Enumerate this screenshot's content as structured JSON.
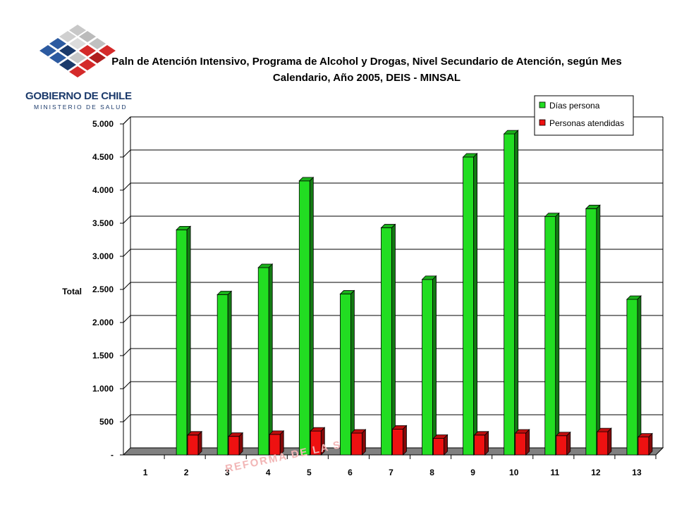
{
  "logo": {
    "line1": "GOBIERNO DE CHILE",
    "line2": "MINISTERIO DE SALUD"
  },
  "watermark": "REFORMA DE LA S",
  "chart_data": {
    "type": "bar",
    "title_line1": "Paln de Atención Intensivo, Programa de Alcohol y Drogas, Nivel Secundario de Atención, según Mes",
    "title_line2": "Calendario, Año 2005, DEIS - MINSAL",
    "ylabel": "Total",
    "xlabel": "",
    "ylim": [
      0,
      5000
    ],
    "yticks": [
      0,
      500,
      1000,
      1500,
      2000,
      2500,
      3000,
      3500,
      4000,
      4500,
      5000
    ],
    "ytick_labels": [
      "-",
      "500",
      "1.000",
      "1.500",
      "2.000",
      "2.500",
      "3.000",
      "3.500",
      "4.000",
      "4.500",
      "5.000"
    ],
    "categories": [
      "1",
      "2",
      "3",
      "4",
      "5",
      "6",
      "7",
      "8",
      "9",
      "10",
      "11",
      "12",
      "13"
    ],
    "grid": true,
    "legend_position": "top-right",
    "series": [
      {
        "name": "Días persona",
        "color": "#22dd22",
        "values": [
          0,
          3400,
          2420,
          2830,
          4140,
          2430,
          3430,
          2650,
          4500,
          4850,
          3600,
          3720,
          2350
        ]
      },
      {
        "name": "Personas atendidas",
        "color": "#ee1111",
        "values": [
          0,
          300,
          280,
          310,
          360,
          330,
          390,
          250,
          300,
          330,
          290,
          350,
          270
        ]
      }
    ]
  }
}
